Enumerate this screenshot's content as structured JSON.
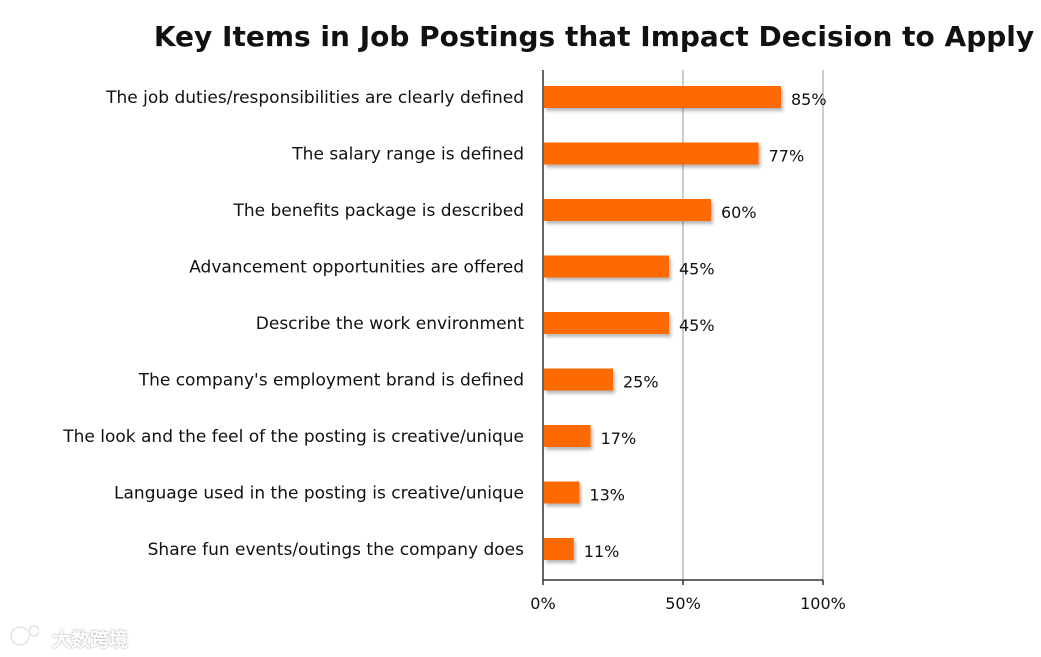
{
  "chart_data": {
    "type": "bar",
    "orientation": "horizontal",
    "title": "Key Items in Job Postings that Impact Decision to Apply",
    "categories": [
      "The job duties/responsibilities are clearly defined",
      "The salary range is defined",
      "The benefits package is described",
      "Advancement opportunities are offered",
      "Describe the work environment",
      "The company's employment brand is defined",
      "The look and the feel of the posting is creative/unique",
      "Language used in the posting is creative/unique",
      "Share fun events/outings the company does"
    ],
    "values": [
      85,
      77,
      60,
      45,
      45,
      25,
      17,
      13,
      11
    ],
    "value_labels": [
      "85%",
      "77%",
      "60%",
      "45%",
      "45%",
      "25%",
      "17%",
      "13%",
      "11%"
    ],
    "xlim": [
      0,
      100
    ],
    "xticks": [
      0,
      50,
      100
    ],
    "xtick_labels": [
      "0%",
      "50%",
      "100%"
    ],
    "grid": "vertical",
    "bar_color": "#ff6a00",
    "legend": "none"
  },
  "watermark": {
    "text": "大数跨境",
    "icon": "logo-icon"
  }
}
